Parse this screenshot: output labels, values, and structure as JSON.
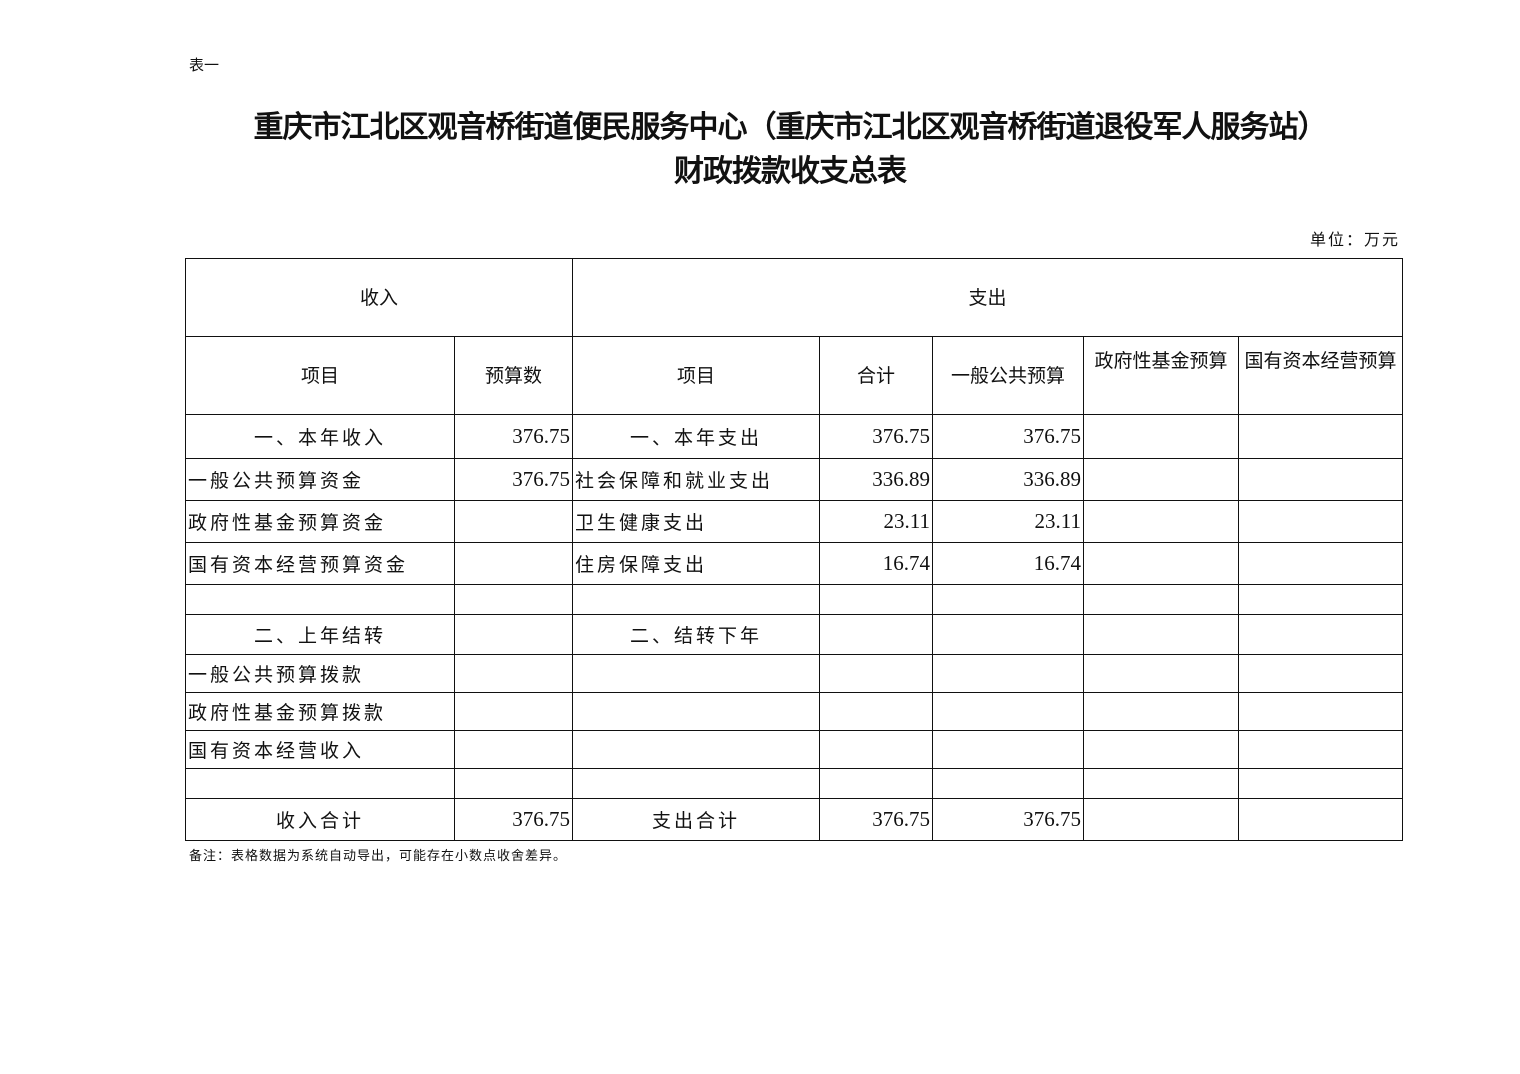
{
  "table_label": "表一",
  "title": {
    "line1": "重庆市江北区观音桥街道便民服务中心（重庆市江北区观音桥街道退役军人服务站）",
    "line2": "财政拨款收支总表"
  },
  "unit": "单位：万元",
  "header": {
    "income": "收入",
    "expense": "支出",
    "cols": [
      "项目",
      "预算数",
      "项目",
      "合计",
      "一般公共预算",
      "政府性基金预算",
      "国有资本经营预算"
    ]
  },
  "rows": [
    [
      "一、本年收入",
      "376.75",
      "一、本年支出",
      "376.75",
      "376.75",
      "",
      ""
    ],
    [
      "一般公共预算资金",
      "376.75",
      "社会保障和就业支出",
      "336.89",
      "336.89",
      "",
      ""
    ],
    [
      "政府性基金预算资金",
      "",
      "卫生健康支出",
      "23.11",
      "23.11",
      "",
      ""
    ],
    [
      "国有资本经营预算资金",
      "",
      "住房保障支出",
      "16.74",
      "16.74",
      "",
      ""
    ],
    [
      "",
      "",
      "",
      "",
      "",
      "",
      ""
    ],
    [
      "二、上年结转",
      "",
      "二、结转下年",
      "",
      "",
      "",
      ""
    ],
    [
      "一般公共预算拨款",
      "",
      "",
      "",
      "",
      "",
      ""
    ],
    [
      "政府性基金预算拨款",
      "",
      "",
      "",
      "",
      "",
      ""
    ],
    [
      "国有资本经营收入",
      "",
      "",
      "",
      "",
      "",
      ""
    ],
    [
      "",
      "",
      "",
      "",
      "",
      "",
      ""
    ],
    [
      "收入合计",
      "376.75",
      "支出合计",
      "376.75",
      "376.75",
      "",
      ""
    ]
  ],
  "note": "备注：表格数据为系统自动导出，可能存在小数点收舍差异。"
}
